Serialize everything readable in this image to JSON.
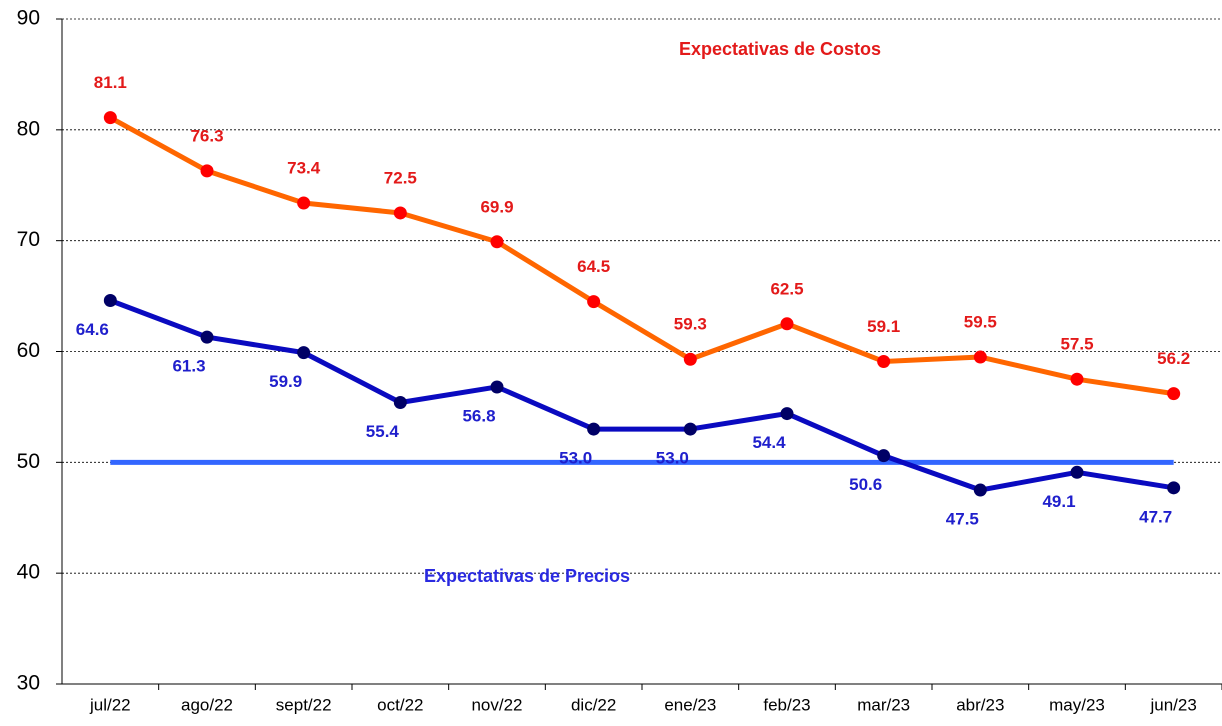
{
  "chart_data": {
    "type": "line",
    "categories": [
      "jul/22",
      "ago/22",
      "sept/22",
      "oct/22",
      "nov/22",
      "dic/22",
      "ene/23",
      "feb/23",
      "mar/23",
      "abr/23",
      "may/23",
      "jun/23"
    ],
    "series": [
      {
        "name": "Expectativas de Costos",
        "color": "#ff6600",
        "marker_color": "#ff0000",
        "label_color": "#e31a1a",
        "values": [
          81.1,
          76.3,
          73.4,
          72.5,
          69.9,
          64.5,
          59.3,
          62.5,
          59.1,
          59.5,
          57.5,
          56.2
        ],
        "value_labels": [
          "81.1",
          "76.3",
          "73.4",
          "72.5",
          "69.9",
          "64.5",
          "59.3",
          "62.5",
          "59.1",
          "59.5",
          "57.5",
          "56.2"
        ]
      },
      {
        "name": "Expectativas de Precios",
        "color": "#0a0ac0",
        "marker_color": "#000066",
        "label_color": "#1f1fcc",
        "values": [
          64.6,
          61.3,
          59.9,
          55.4,
          56.8,
          53.0,
          53.0,
          54.4,
          50.6,
          47.5,
          49.1,
          47.7
        ],
        "value_labels": [
          "64.6",
          "61.3",
          "59.9",
          "55.4",
          "56.8",
          "53.0",
          "53.0",
          "54.4",
          "50.6",
          "47.5",
          "49.1",
          "47.7"
        ]
      }
    ],
    "reference_line": {
      "value": 50,
      "color": "#3366ff"
    },
    "ylim": [
      30,
      90
    ],
    "yticks": [
      30,
      40,
      50,
      60,
      70,
      80,
      90
    ],
    "grid": true
  }
}
